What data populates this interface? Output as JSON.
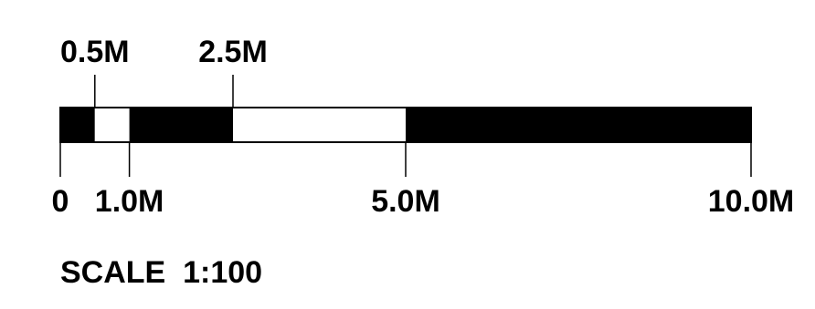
{
  "scale_bar": {
    "unit": "M",
    "max_value": 10.0,
    "bottom_labels": [
      {
        "value": 0,
        "text": "0"
      },
      {
        "value": 1.0,
        "text": "1.0M"
      },
      {
        "value": 5.0,
        "text": "5.0M"
      },
      {
        "value": 10.0,
        "text": "10.0M"
      }
    ],
    "top_labels": [
      {
        "value": 0.5,
        "text": "0.5M"
      },
      {
        "value": 2.5,
        "text": "2.5M"
      }
    ],
    "segments": [
      {
        "from": 0,
        "to": 0.5,
        "fill": "#000000"
      },
      {
        "from": 0.5,
        "to": 1.0,
        "fill": "#ffffff"
      },
      {
        "from": 1.0,
        "to": 2.5,
        "fill": "#000000"
      },
      {
        "from": 2.5,
        "to": 5.0,
        "fill": "#ffffff"
      },
      {
        "from": 5.0,
        "to": 10.0,
        "fill": "#000000"
      }
    ]
  },
  "caption": "SCALE  1:100",
  "colors": {
    "dark": "#000000",
    "light": "#ffffff"
  }
}
